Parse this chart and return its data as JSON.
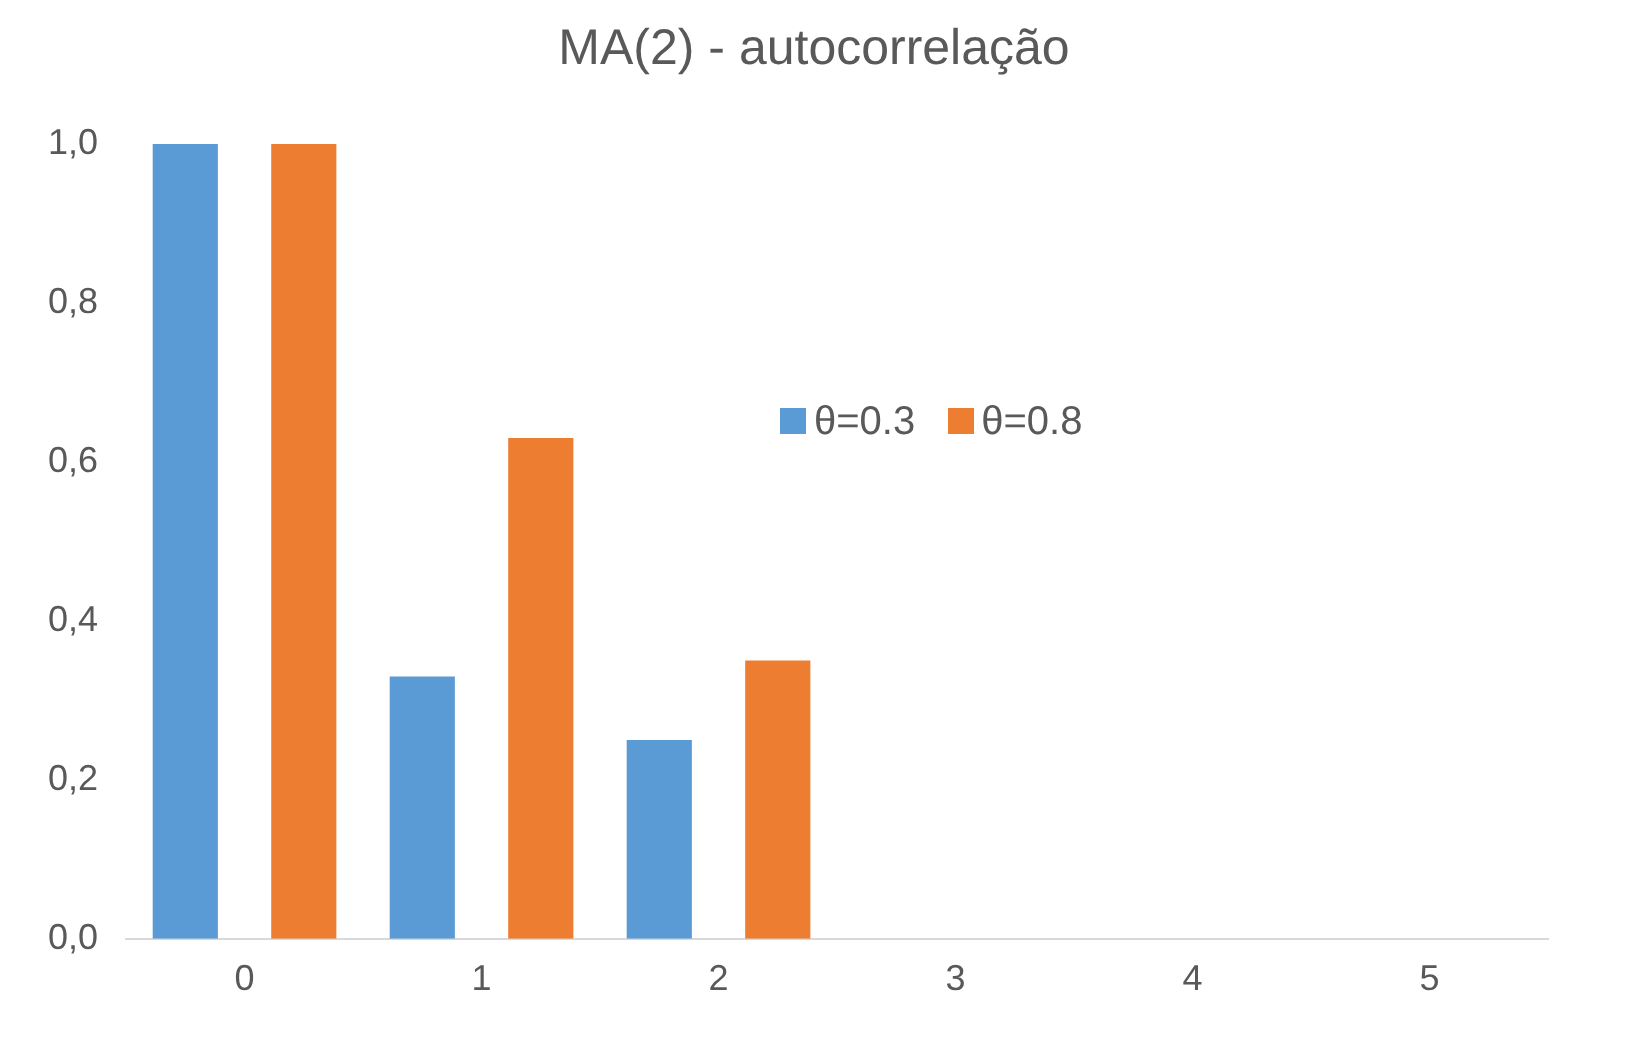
{
  "chart_data": {
    "type": "bar",
    "title": "MA(2) - autocorrelação",
    "categories": [
      "0",
      "1",
      "2",
      "3",
      "4",
      "5"
    ],
    "series": [
      {
        "name": "θ=0.3",
        "color": "#5b9bd5",
        "values": [
          1.0,
          0.33,
          0.25,
          0,
          0,
          0
        ]
      },
      {
        "name": "θ=0.8",
        "color": "#ed7d31",
        "values": [
          1.0,
          0.63,
          0.35,
          0,
          0,
          0
        ]
      }
    ],
    "ylim": [
      0,
      1
    ],
    "yticks": [
      {
        "value": 0,
        "label": "0,0"
      },
      {
        "value": 0.2,
        "label": "0,2"
      },
      {
        "value": 0.4,
        "label": "0,4"
      },
      {
        "value": 0.6,
        "label": "0,6"
      },
      {
        "value": 0.8,
        "label": "0,8"
      },
      {
        "value": 1,
        "label": "1,0"
      }
    ],
    "grid": false,
    "legend": "center"
  }
}
